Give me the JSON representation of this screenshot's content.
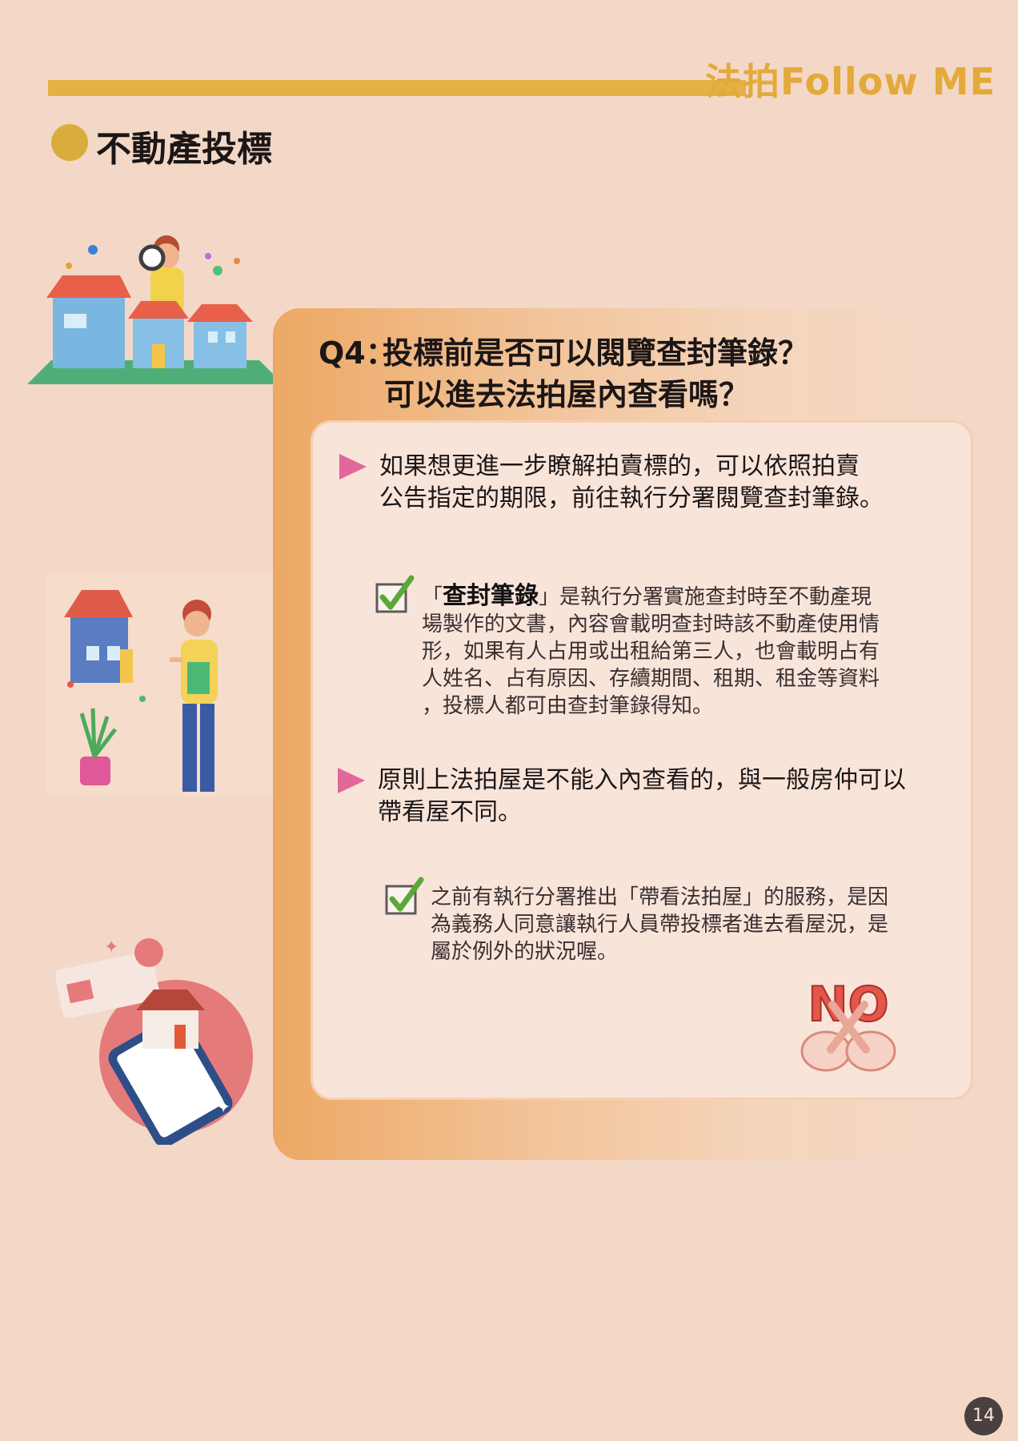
{
  "header": {
    "brand": "法拍Follow ME"
  },
  "section": {
    "title": "不動產投標"
  },
  "question": {
    "prefix": "Q4：",
    "line1": "投標前是否可以閱覽查封筆錄？",
    "line2": "可以進去法拍屋內查看嗎？"
  },
  "answers": [
    {
      "line1": "如果想更進一步瞭解拍賣標的，可以依照拍賣",
      "line2": "公告指定的期限，前往執行分署閱覽查封筆錄。",
      "note": {
        "open_quote": "「",
        "term": "查封筆錄",
        "close_quote": "」",
        "lines": [
          "是執行分署實施查封時至不動產現",
          "場製作的文書，內容會載明查封時該不動產使用情",
          "形，如果有人占用或出租給第三人，也會載明占有",
          "人姓名、占有原因、存續期間、租期、租金等資料",
          "，投標人都可由查封筆錄得知。"
        ]
      }
    },
    {
      "line1": "原則上法拍屋是不能入內查看的，與一般房仲可以",
      "line2": "帶看屋不同。",
      "note": {
        "lines": [
          "之前有執行分署推出「帶看法拍屋」的服務，是因",
          "為義務人同意讓執行人員帶投標者進去看屋況，是",
          "屬於例外的狀況喔。"
        ]
      }
    }
  ],
  "no_sign": "NO",
  "page_number": "14",
  "colors": {
    "accent_gold": "#e3b245",
    "bullet_pink": "#e2679a",
    "check_green": "#5aa83a",
    "frame_orange": "#eda864"
  }
}
